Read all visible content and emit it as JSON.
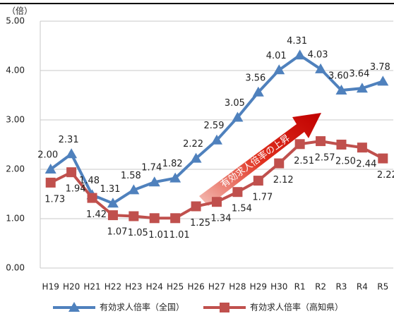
{
  "chart_data": {
    "type": "line",
    "y_unit": "（倍）",
    "annotation": "有効求人倍率の上昇",
    "categories": [
      "H19",
      "H20",
      "H21",
      "H22",
      "H23",
      "H24",
      "H25",
      "H26",
      "H27",
      "H28",
      "H29",
      "H30",
      "R1",
      "R2",
      "R3",
      "R4",
      "R5"
    ],
    "series": [
      {
        "name": "有効求人倍率（全国）",
        "color": "#4f81bd",
        "marker": "triangle",
        "values": [
          2.0,
          2.31,
          1.48,
          1.31,
          1.58,
          1.74,
          1.82,
          2.22,
          2.59,
          3.05,
          3.56,
          4.01,
          4.31,
          4.03,
          3.6,
          3.64,
          3.78
        ],
        "value_labels": [
          "2.00",
          "2.31",
          "1.48",
          "1.31",
          "1.58",
          "1.74",
          "1.82",
          "2.22",
          "2.59",
          "3.05",
          "3.56",
          "4.01",
          "4.31",
          "4.03",
          "3.60",
          "3.64",
          "3.78"
        ]
      },
      {
        "name": "有効求人倍率（高知県）",
        "color": "#c0504d",
        "marker": "square",
        "values": [
          1.73,
          1.94,
          1.42,
          1.07,
          1.05,
          1.01,
          1.01,
          1.25,
          1.34,
          1.54,
          1.77,
          2.12,
          2.51,
          2.57,
          2.5,
          2.44,
          2.22
        ],
        "value_labels": [
          "1.73",
          "1.94",
          "1.42",
          "1.07",
          "1.05",
          "1.01",
          "1.01",
          "1.25",
          "1.34",
          "1.54",
          "1.77",
          "2.12",
          "2.51",
          "2.57",
          "2.50",
          "2.44",
          "2.22"
        ]
      }
    ],
    "ylim": [
      0,
      5
    ],
    "yticks": [
      {
        "value": 0,
        "label": "0.00"
      },
      {
        "value": 1,
        "label": "1.00"
      },
      {
        "value": 2,
        "label": "2.00"
      },
      {
        "value": 3,
        "label": "3.00"
      },
      {
        "value": 4,
        "label": "4.00"
      },
      {
        "value": 5,
        "label": "5.00"
      }
    ],
    "grid": true,
    "legend": "bottom"
  }
}
